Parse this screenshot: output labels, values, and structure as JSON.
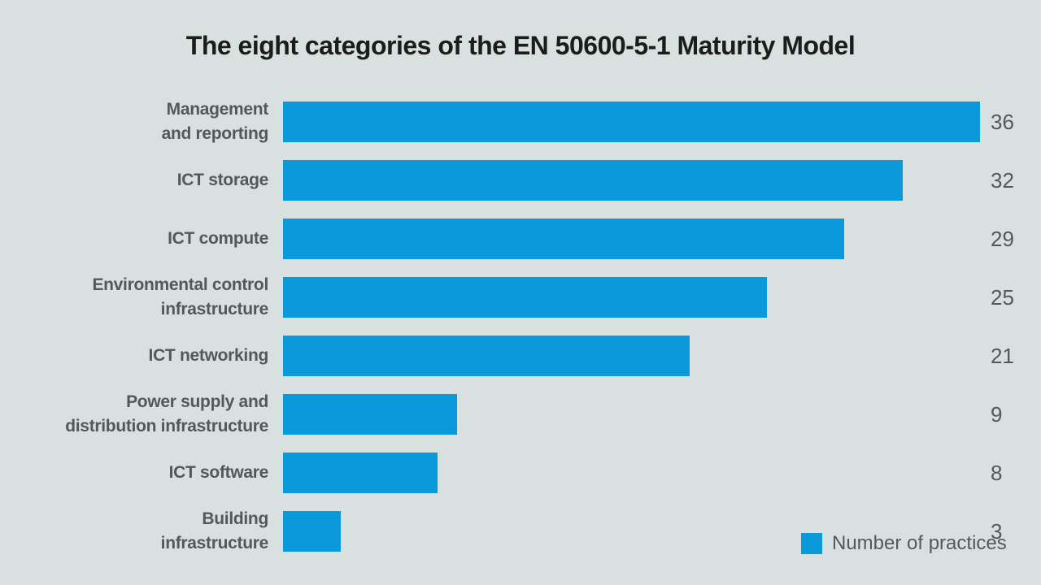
{
  "page": {
    "background_color": "#d9e0e0"
  },
  "chart_data": {
    "type": "bar",
    "orientation": "horizontal",
    "title": "The eight categories of the EN 50600-5-1 Maturity Model",
    "categories": [
      "Management and reporting",
      "ICT storage",
      "ICT compute",
      "Environmental control infrastructure",
      "ICT networking",
      "Power supply and distribution infrastructure",
      "ICT software",
      "Building infrastructure"
    ],
    "category_lines": [
      [
        "Management",
        "and reporting"
      ],
      [
        "ICT storage"
      ],
      [
        "ICT compute"
      ],
      [
        "Environmental control",
        "infrastructure"
      ],
      [
        "ICT networking"
      ],
      [
        "Power supply and",
        "distribution infrastructure"
      ],
      [
        "ICT software"
      ],
      [
        "Building",
        "infrastructure"
      ]
    ],
    "values": [
      36,
      32,
      29,
      25,
      21,
      9,
      8,
      3
    ],
    "xlim": [
      0,
      36
    ],
    "grid": false,
    "bar_color": "#0a99da",
    "label_color": "#54585a",
    "title_color": "#1c1c1a",
    "legend": {
      "label": "Number of practices",
      "swatch_color": "#0a99da",
      "position": "bottom-right"
    }
  }
}
